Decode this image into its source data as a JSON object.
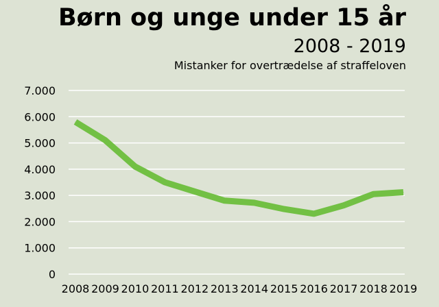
{
  "chart_data": {
    "type": "line",
    "title": "Børn og unge under 15 år",
    "subtitle": "2008 - 2019",
    "caption": "Mistanker for overtrædelse af straffeloven",
    "xlabel": "",
    "ylabel": "",
    "x": [
      "2008",
      "2009",
      "2010",
      "2011",
      "2012",
      "2013",
      "2014",
      "2015",
      "2016",
      "2017",
      "2018",
      "2019"
    ],
    "y_ticks": [
      0,
      1000,
      2000,
      3000,
      4000,
      5000,
      6000,
      7000
    ],
    "y_tick_labels": [
      "0",
      "1.000",
      "2.000",
      "3.000",
      "4.000",
      "5.000",
      "6.000",
      "7.000"
    ],
    "ylim": [
      0,
      7000
    ],
    "grid": true,
    "series": [
      {
        "values": [
          5800,
          5100,
          4100,
          3500,
          3150,
          2800,
          2720,
          2480,
          2300,
          2620,
          3050,
          3120
        ]
      }
    ],
    "colors": {
      "line": "#72c044",
      "grid": "#ffffff",
      "background": "#dde3d4"
    }
  }
}
